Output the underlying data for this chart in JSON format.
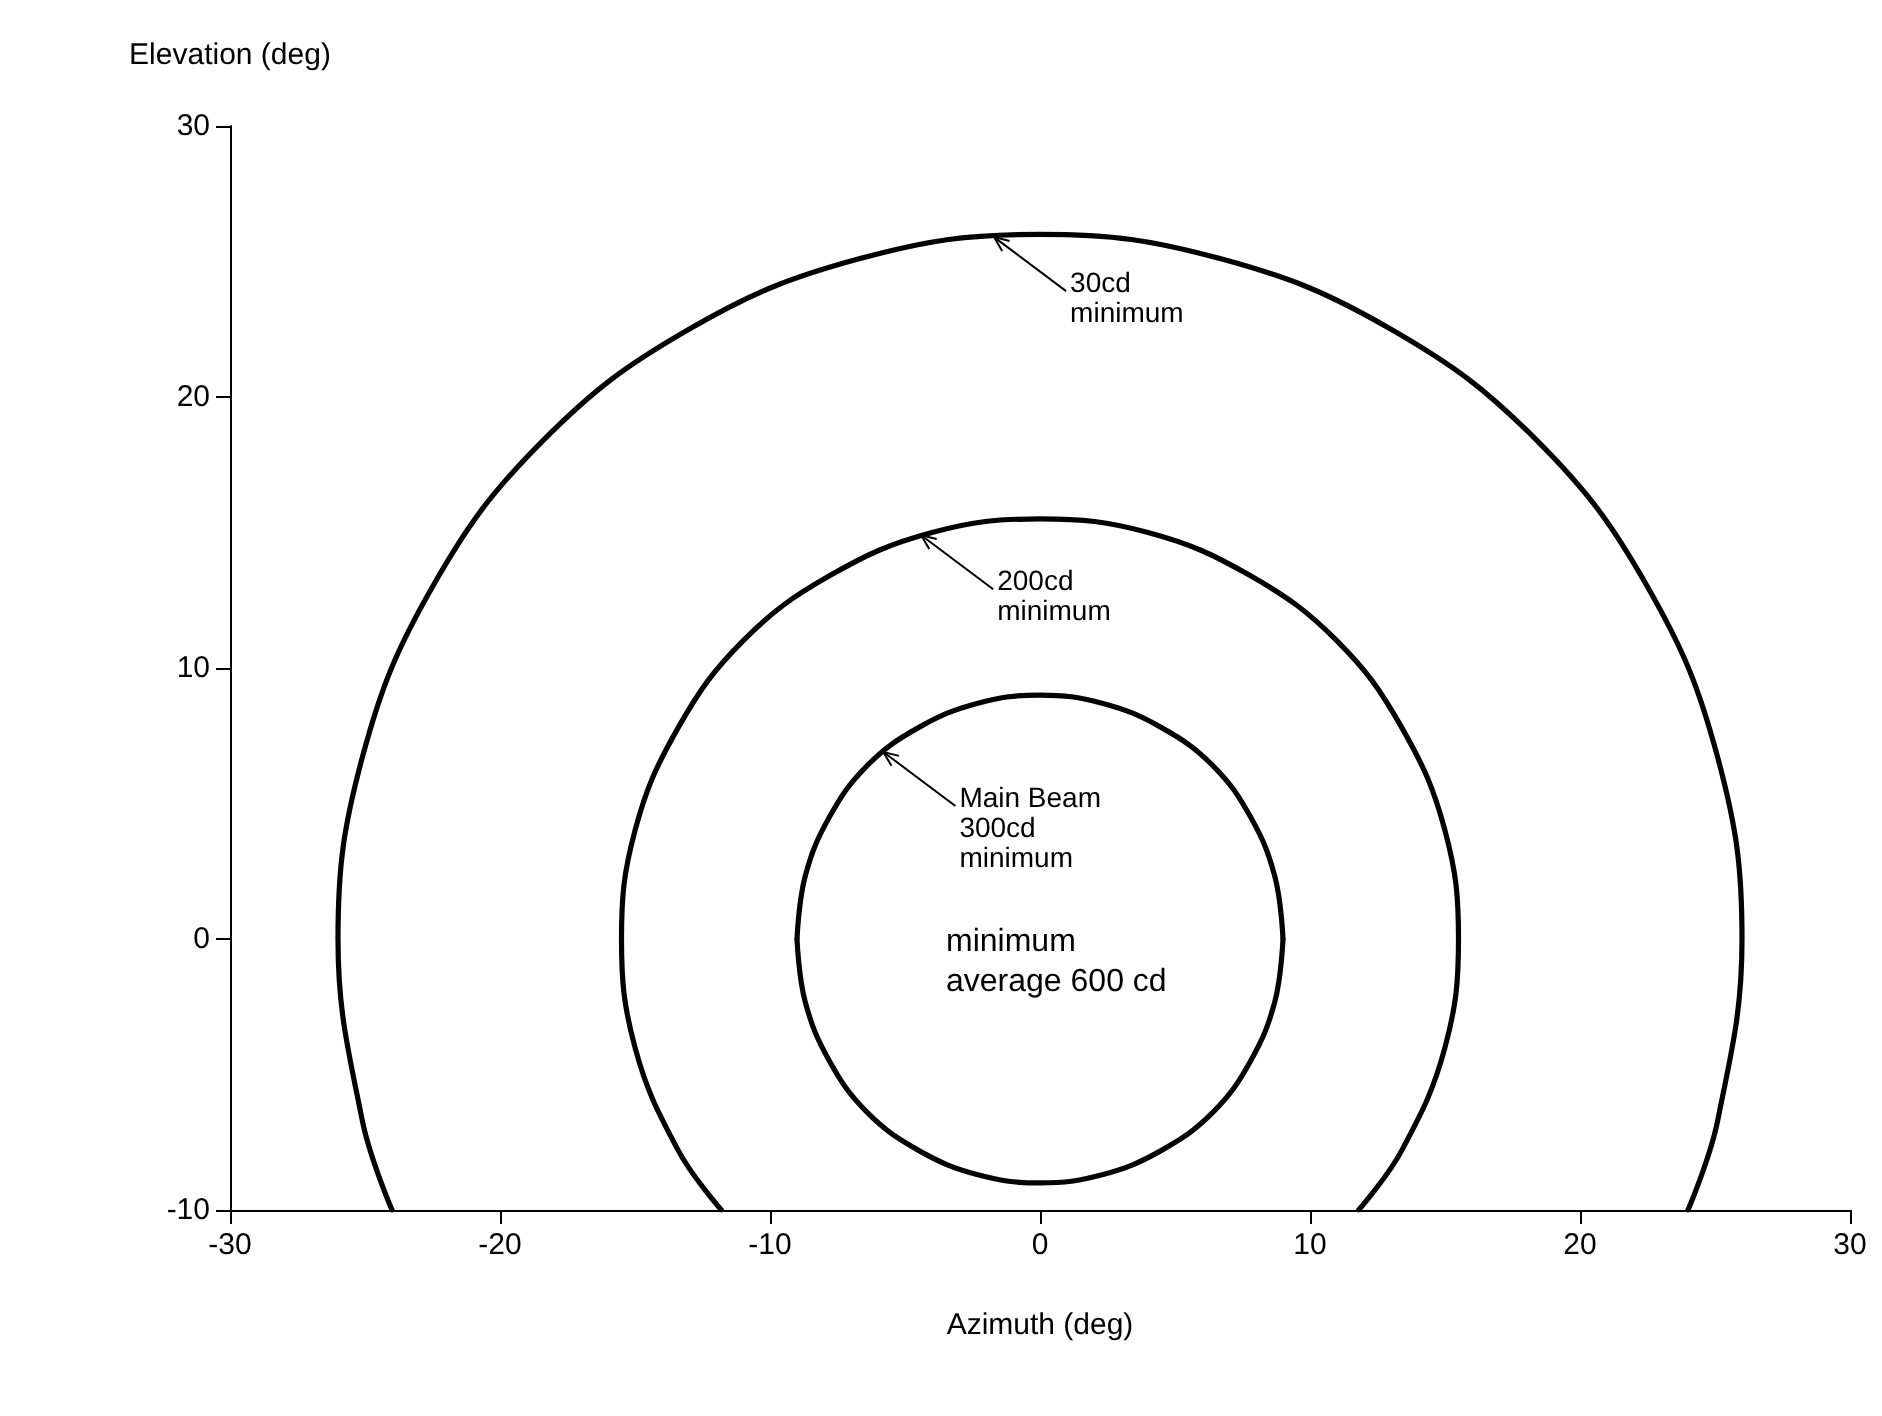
{
  "chart_data": {
    "type": "line",
    "xlabel": "Azimuth (deg)",
    "ylabel": "Elevation (deg)",
    "xlim": [
      -30,
      30
    ],
    "xticks": [
      -30,
      -20,
      -10,
      0,
      10,
      20,
      30
    ],
    "ylim": [
      -10,
      30
    ],
    "yticks": [
      -10,
      0,
      10,
      20,
      30
    ],
    "grid": false,
    "marker": "none",
    "line_style": "solid",
    "series": [
      {
        "color": "#030303",
        "x": [
          9,
          8.7,
          7.8,
          6.4,
          4.5,
          2.3,
          0,
          -2.3,
          -4.5,
          -6.4,
          -7.8,
          -8.7,
          -9
        ],
        "values": [
          0,
          2.3,
          4.5,
          6.4,
          7.8,
          8.7,
          9,
          8.7,
          7.8,
          6.4,
          4.5,
          2.3,
          0
        ]
      },
      {
        "color": "#040404",
        "x": [
          -9,
          -8.7,
          -7.8,
          -6.4,
          -4.5,
          -2.3,
          0,
          2.3,
          4.5,
          6.4,
          7.8,
          8.7,
          9
        ],
        "values": [
          0,
          -2.3,
          -4.5,
          -6.4,
          -7.8,
          -8.7,
          -9,
          -8.7,
          -7.8,
          -6.4,
          -4.5,
          -2.3,
          0
        ]
      },
      {
        "color": "#010101",
        "x": [
          11.8,
          13.4,
          15.0,
          15.5,
          15.0,
          13.4,
          11.0,
          7.8,
          4.0,
          0,
          -4.0,
          -7.8,
          -11.0,
          -13.4,
          -15.0,
          -15.5,
          -15.0,
          -13.4,
          -11.8
        ],
        "values": [
          -10,
          -7.8,
          -4.0,
          0,
          4.0,
          7.8,
          11.0,
          13.4,
          15.0,
          15.5,
          15.0,
          13.4,
          11.0,
          7.8,
          4.0,
          0,
          -4.0,
          -7.8,
          -10
        ]
      },
      {
        "color": "#020202",
        "x": [
          24,
          25.1,
          26,
          25.1,
          22.5,
          18.4,
          13,
          6.7,
          0,
          -6.7,
          -13,
          -18.4,
          -22.5,
          -25.1,
          -26,
          -25.1,
          -24
        ],
        "values": [
          -10,
          -6.7,
          0,
          6.7,
          13,
          18.4,
          22.5,
          25.1,
          26,
          25.1,
          22.5,
          18.4,
          13,
          6.7,
          0,
          -6.7,
          -10
        ]
      }
    ],
    "annotations": [
      {
        "text": "30cd\nminimum",
        "x": -1.7,
        "y": 25.9
      },
      {
        "text": "200cd\nminimum",
        "x": -4.4,
        "y": 14.9
      },
      {
        "text": "Main Beam\n300cd\nminimum",
        "x": -5.8,
        "y": 6.9
      },
      "minimum\naverage 600 cd"
    ]
  }
}
